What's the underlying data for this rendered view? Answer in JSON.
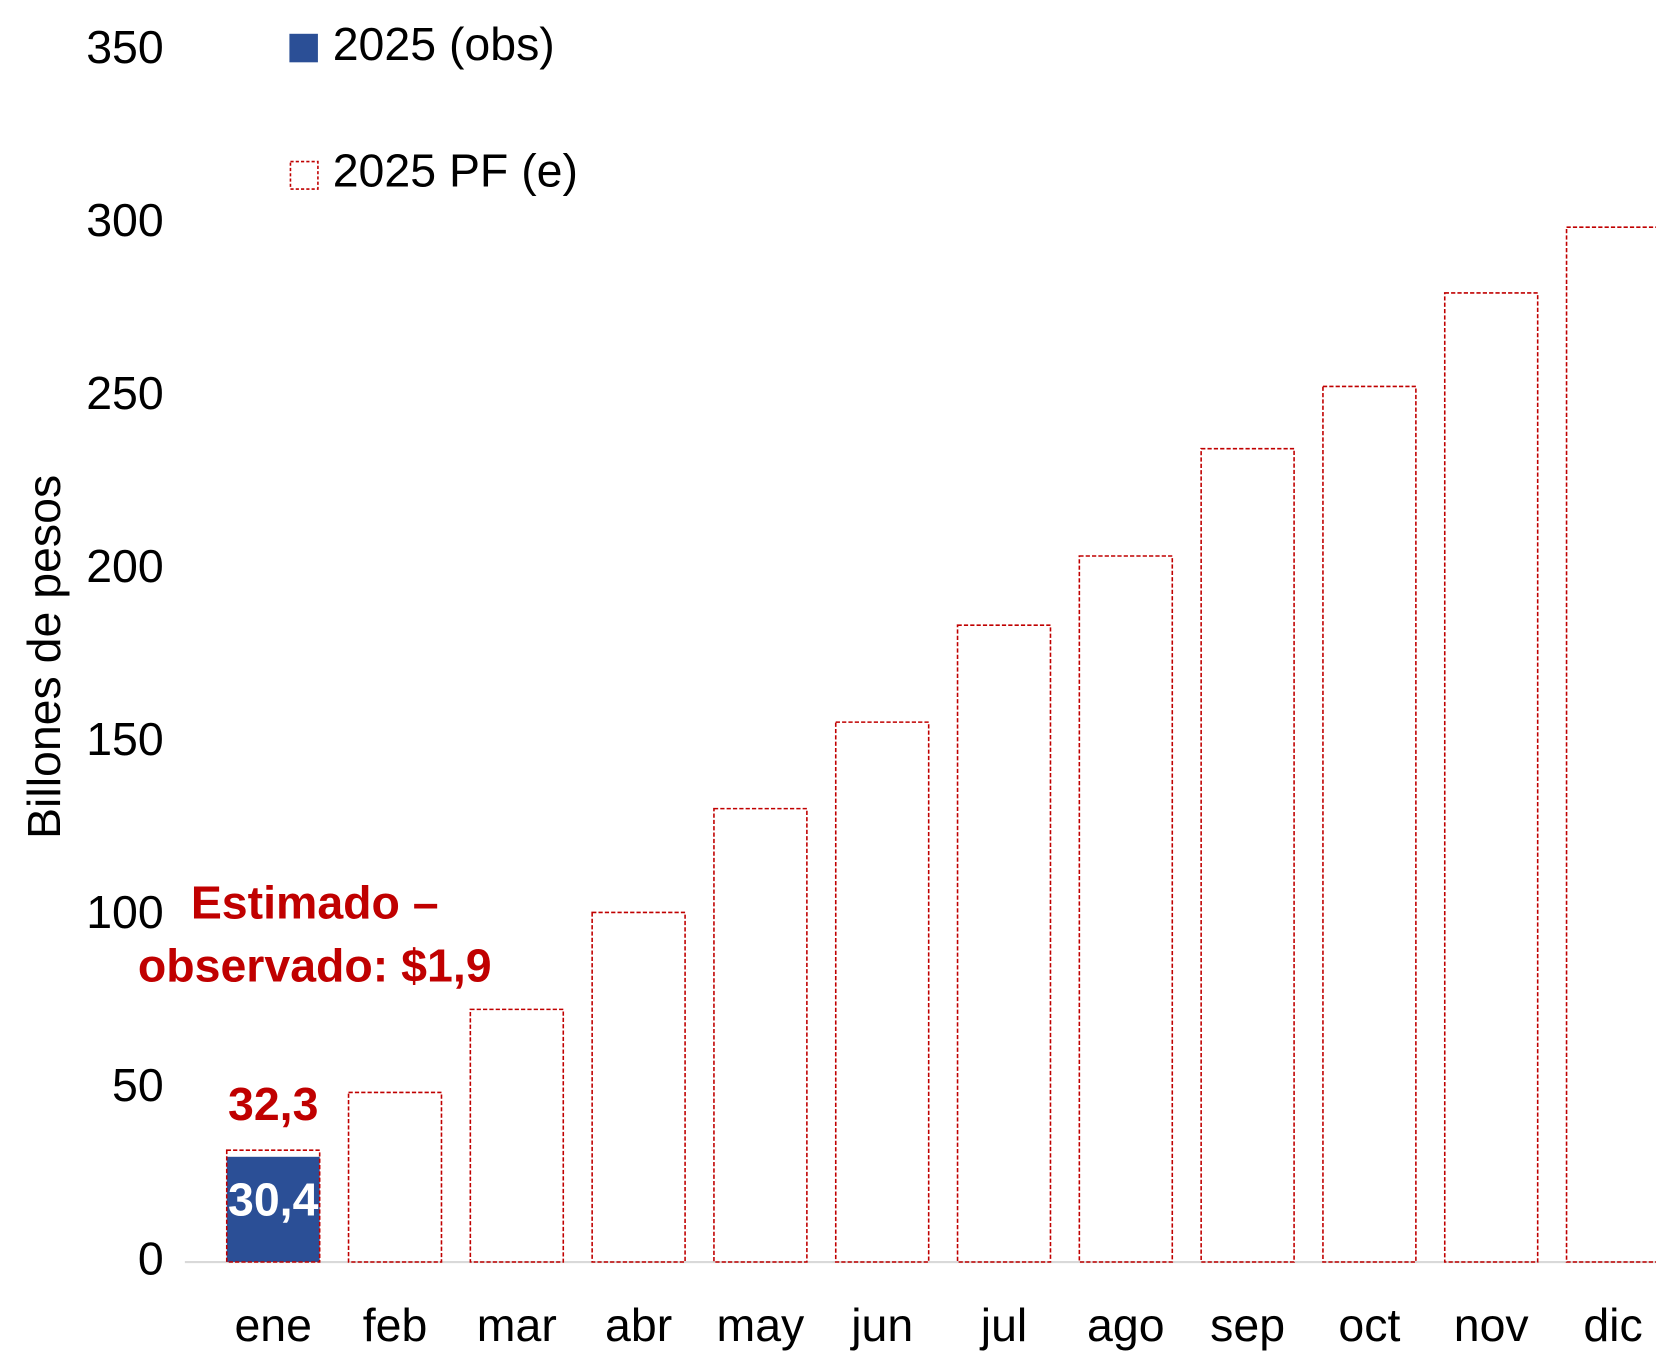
{
  "chart_data": {
    "type": "bar",
    "y_axis_label": "Billones de pesos",
    "categories": [
      "ene",
      "feb",
      "mar",
      "abr",
      "may",
      "jun",
      "jul",
      "ago",
      "sep",
      "oct",
      "nov",
      "dic"
    ],
    "series": [
      {
        "name": "2025 PF (e)",
        "color": "#c00000",
        "style": "dashed-outline",
        "values": [
          32.3,
          49,
          73,
          101,
          131,
          156,
          184,
          204,
          235,
          253,
          280,
          299
        ],
        "value_labels": [
          "32,3",
          null,
          null,
          null,
          null,
          null,
          null,
          null,
          null,
          null,
          null,
          null
        ]
      },
      {
        "name": "2025 (obs)",
        "color": "#2b4f96",
        "style": "filled",
        "values": [
          30.4,
          null,
          null,
          null,
          null,
          null,
          null,
          null,
          null,
          null,
          null,
          null
        ],
        "value_labels": [
          "30,4",
          null,
          null,
          null,
          null,
          null,
          null,
          null,
          null,
          null,
          null,
          null
        ]
      }
    ],
    "annotation": [
      "Estimado –",
      "observado: $1,9"
    ],
    "ylim": [
      0,
      350
    ],
    "yticks": [
      0,
      50,
      100,
      150,
      200,
      250,
      300,
      350
    ],
    "grid": false
  }
}
